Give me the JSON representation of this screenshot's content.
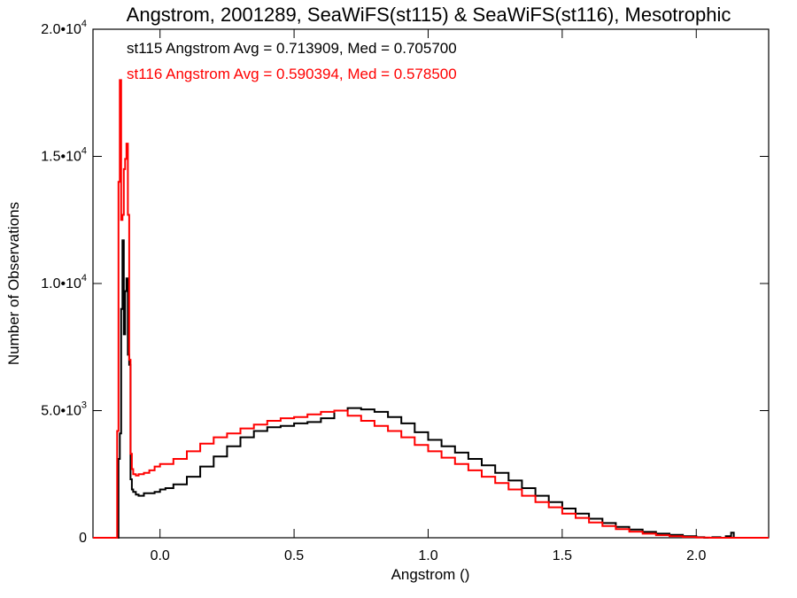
{
  "chart_data": {
    "type": "line",
    "title": "Angstrom, 2001289, SeaWiFS(st115) & SeaWiFS(st116), Mesotrophic",
    "xlabel": "Angstrom ()",
    "ylabel": "Number of Observations",
    "xlim": [
      -0.25,
      2.27
    ],
    "ylim": [
      0,
      20000
    ],
    "xticks": [
      0.0,
      0.5,
      1.0,
      1.5,
      2.0
    ],
    "xtick_labels": [
      "0.0",
      "0.5",
      "1.0",
      "1.5",
      "2.0"
    ],
    "yticks": [
      0,
      5000,
      10000,
      15000,
      20000
    ],
    "ytick_labels": [
      {
        "mant": "0",
        "exp": ""
      },
      {
        "mant": "5.0•10",
        "exp": "3"
      },
      {
        "mant": "1.0•10",
        "exp": "4"
      },
      {
        "mant": "1.5•10",
        "exp": "4"
      },
      {
        "mant": "2.0•10",
        "exp": "4"
      }
    ],
    "grid": false,
    "annotations": [
      {
        "text": "st115 Angstrom Avg = 0.713909, Med = 0.705700",
        "color": "#000000"
      },
      {
        "text": "st116 Angstrom Avg = 0.590394, Med = 0.578500",
        "color": "#ff0000"
      }
    ],
    "series": [
      {
        "color": "#000000",
        "step": true,
        "x": [
          -0.25,
          -0.17,
          -0.155,
          -0.15,
          -0.145,
          -0.14,
          -0.135,
          -0.13,
          -0.125,
          -0.12,
          -0.115,
          -0.11,
          -0.105,
          -0.1,
          -0.09,
          -0.08,
          -0.06,
          -0.04,
          -0.02,
          0.0,
          0.02,
          0.05,
          0.1,
          0.15,
          0.2,
          0.25,
          0.3,
          0.35,
          0.4,
          0.45,
          0.5,
          0.55,
          0.6,
          0.65,
          0.7,
          0.75,
          0.8,
          0.85,
          0.9,
          0.95,
          1.0,
          1.05,
          1.1,
          1.15,
          1.2,
          1.25,
          1.3,
          1.35,
          1.4,
          1.45,
          1.5,
          1.55,
          1.6,
          1.65,
          1.7,
          1.75,
          1.8,
          1.85,
          1.9,
          1.95,
          2.0,
          2.03,
          2.06,
          2.09,
          2.11,
          2.13,
          2.14,
          2.15,
          2.27
        ],
        "y": [
          0,
          0,
          3100,
          4100,
          9000,
          11700,
          8000,
          9700,
          10200,
          7200,
          6800,
          2300,
          1900,
          1800,
          1700,
          1650,
          1750,
          1750,
          1800,
          1900,
          1950,
          2100,
          2400,
          2800,
          3200,
          3600,
          3950,
          4200,
          4350,
          4400,
          4500,
          4550,
          4700,
          5000,
          5100,
          5050,
          4950,
          4750,
          4500,
          4150,
          3850,
          3600,
          3350,
          3100,
          2850,
          2550,
          2250,
          1950,
          1650,
          1400,
          1150,
          950,
          750,
          580,
          430,
          320,
          230,
          160,
          110,
          60,
          20,
          0,
          20,
          0,
          60,
          200,
          0,
          0,
          0
        ]
      },
      {
        "color": "#ff0000",
        "step": true,
        "x": [
          -0.25,
          -0.17,
          -0.16,
          -0.155,
          -0.15,
          -0.145,
          -0.14,
          -0.135,
          -0.13,
          -0.125,
          -0.12,
          -0.115,
          -0.11,
          -0.105,
          -0.1,
          -0.09,
          -0.08,
          -0.06,
          -0.04,
          -0.02,
          0.0,
          0.05,
          0.1,
          0.15,
          0.2,
          0.25,
          0.3,
          0.35,
          0.4,
          0.45,
          0.5,
          0.55,
          0.6,
          0.65,
          0.7,
          0.75,
          0.8,
          0.85,
          0.9,
          0.95,
          1.0,
          1.05,
          1.1,
          1.15,
          1.2,
          1.25,
          1.3,
          1.35,
          1.4,
          1.45,
          1.5,
          1.55,
          1.6,
          1.65,
          1.7,
          1.75,
          1.8,
          1.85,
          1.9,
          1.95,
          2.0,
          2.05,
          2.1,
          2.27
        ],
        "y": [
          0,
          0,
          4200,
          14000,
          18000,
          12500,
          12700,
          14500,
          14900,
          15500,
          12700,
          7000,
          3300,
          2700,
          2500,
          2450,
          2500,
          2550,
          2650,
          2800,
          2900,
          3100,
          3400,
          3700,
          3950,
          4100,
          4300,
          4450,
          4600,
          4700,
          4750,
          4850,
          4950,
          5000,
          4800,
          4600,
          4400,
          4200,
          3950,
          3650,
          3400,
          3150,
          2900,
          2650,
          2400,
          2150,
          1900,
          1650,
          1400,
          1200,
          950,
          780,
          600,
          460,
          340,
          240,
          160,
          100,
          60,
          30,
          10,
          0,
          0,
          0
        ]
      }
    ]
  }
}
